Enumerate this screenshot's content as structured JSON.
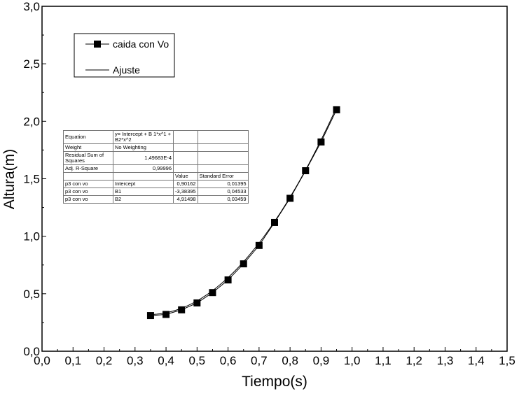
{
  "chart_data": {
    "type": "scatter",
    "xlabel": "Tiempo(s)",
    "ylabel": "Altura(m)",
    "xlim": [
      0.0,
      1.5
    ],
    "ylim": [
      0.0,
      3.0
    ],
    "x_ticks": [
      "0,0",
      "0,1",
      "0,2",
      "0,3",
      "0,4",
      "0,5",
      "0,6",
      "0,7",
      "0,8",
      "0,9",
      "1,0",
      "1,1",
      "1,2",
      "1,3",
      "1,4",
      "1,5"
    ],
    "y_ticks": [
      "0,0",
      "0,5",
      "1,0",
      "1,5",
      "2,0",
      "2,5",
      "3,0"
    ],
    "grid": false,
    "legend_position": "top-left",
    "series": [
      {
        "name": "caida con Vo",
        "style": "line with square markers",
        "x": [
          0.35,
          0.4,
          0.45,
          0.5,
          0.55,
          0.6,
          0.65,
          0.7,
          0.75,
          0.8,
          0.85,
          0.9,
          0.95
        ],
        "y": [
          0.31,
          0.32,
          0.36,
          0.42,
          0.51,
          0.62,
          0.76,
          0.92,
          1.12,
          1.33,
          1.57,
          1.82,
          2.1
        ]
      },
      {
        "name": "Ajuste",
        "style": "line",
        "fit": {
          "intercept": 0.90162,
          "b1": -3.38395,
          "b2": 4.91498
        }
      }
    ],
    "fit_table": {
      "equation_label": "Equation",
      "equation_value": "y= Intercept + B 1*x^1 + B2*x^2",
      "weight_label": "Weight",
      "weight_value": "No Weighting",
      "rss_label": "Residual Sum of Squares",
      "rss_value": "1,49683E-4",
      "adjr_label": "Adj. R-Square",
      "adjr_value": "0,99996",
      "header_value": "Value",
      "header_error": "Standard Error",
      "rows": [
        {
          "name": "p3 con vo",
          "param": "Intercept",
          "value": "0,90162",
          "error": "0,01395"
        },
        {
          "name": "p3 con vo",
          "param": "B1",
          "value": "-3,38395",
          "error": "0,04533"
        },
        {
          "name": "p3 con vo",
          "param": "B2",
          "value": "4,91498",
          "error": "0,03459"
        }
      ]
    }
  }
}
